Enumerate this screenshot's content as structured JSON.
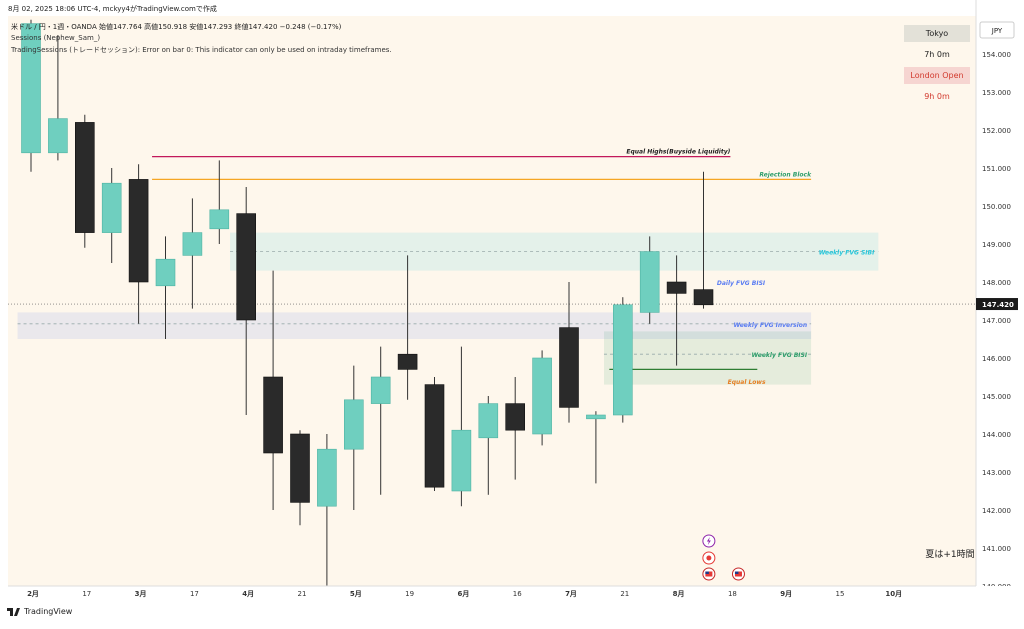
{
  "header": {
    "timestamp": "8月 02, 2025 18:06 UTC-4,  mckyy4がTradingView.comで作成",
    "symbol_line": "米ドル / 円・1週・OANDA  始値147.764  高値150.918  安値147.293  終値147.420  −0.248 (−0.17%)",
    "indicator_1": "Sessions (Nephew_Sam_)",
    "indicator_2": "TradingSessions (トレードセッション): Error on bar 0: This indicator can only be used on intraday timeframes."
  },
  "sessions": {
    "tokyo_label": "Tokyo",
    "tokyo_time": "7h 0m",
    "london_label": "London Open",
    "london_time": "9h 0m"
  },
  "currency": "JPY",
  "dst_note": "夏は+1時間",
  "footer": {
    "brand": "TradingView"
  },
  "colors": {
    "bull": "#6fcfbf",
    "bear": "#2a2a2a",
    "background": "#fef7ec",
    "equal_highs": "#c2185b",
    "rejection": "#f5a623",
    "weekly_fvg_sibi": "#26c6da",
    "weekly_fvg_inversion": "#5a7cf2",
    "weekly_fvg_bisi": "#2e9e6b",
    "equal_lows": "#e67e22"
  },
  "chart_data": {
    "type": "candlestick",
    "timeframe": "1週",
    "ylim": [
      140,
      155
    ],
    "current_price": 147.42,
    "current_price_label": "147.420",
    "y_ticks": [
      "154.000",
      "153.000",
      "152.000",
      "151.000",
      "150.000",
      "149.000",
      "148.000",
      "147.000",
      "146.000",
      "145.000",
      "144.000",
      "143.000",
      "142.000",
      "141.000",
      "140.000"
    ],
    "x_ticks": [
      {
        "label": "2月",
        "i": 0.5
      },
      {
        "label": "17",
        "i": 2.5
      },
      {
        "label": "3月",
        "i": 4.5
      },
      {
        "label": "17",
        "i": 6.5
      },
      {
        "label": "4月",
        "i": 8.5
      },
      {
        "label": "21",
        "i": 10.5
      },
      {
        "label": "5月",
        "i": 12.5
      },
      {
        "label": "19",
        "i": 14.5
      },
      {
        "label": "6月",
        "i": 16.5
      },
      {
        "label": "16",
        "i": 18.5
      },
      {
        "label": "7月",
        "i": 20.5
      },
      {
        "label": "21",
        "i": 22.5
      },
      {
        "label": "8月",
        "i": 24.5
      },
      {
        "label": "18",
        "i": 26.5
      },
      {
        "label": "9月",
        "i": 28.5
      },
      {
        "label": "15",
        "i": 30.5
      },
      {
        "label": "10月",
        "i": 32.5
      }
    ],
    "candles": [
      {
        "o": 151.4,
        "h": 154.9,
        "l": 150.9,
        "c": 154.8
      },
      {
        "o": 151.4,
        "h": 154.5,
        "l": 151.2,
        "c": 152.3
      },
      {
        "o": 152.2,
        "h": 152.4,
        "l": 148.9,
        "c": 149.3
      },
      {
        "o": 149.3,
        "h": 151.0,
        "l": 148.5,
        "c": 150.6
      },
      {
        "o": 150.7,
        "h": 151.1,
        "l": 146.9,
        "c": 148.0
      },
      {
        "o": 147.9,
        "h": 149.2,
        "l": 146.5,
        "c": 148.6
      },
      {
        "o": 148.7,
        "h": 150.2,
        "l": 147.3,
        "c": 149.3
      },
      {
        "o": 149.4,
        "h": 151.2,
        "l": 149.0,
        "c": 149.9
      },
      {
        "o": 149.8,
        "h": 150.5,
        "l": 144.5,
        "c": 147.0
      },
      {
        "o": 145.5,
        "h": 148.3,
        "l": 142.0,
        "c": 143.5
      },
      {
        "o": 144.0,
        "h": 144.1,
        "l": 141.6,
        "c": 142.2
      },
      {
        "o": 142.1,
        "h": 144.0,
        "l": 140.0,
        "c": 143.6
      },
      {
        "o": 143.6,
        "h": 145.8,
        "l": 142.0,
        "c": 144.9
      },
      {
        "o": 144.8,
        "h": 146.3,
        "l": 142.4,
        "c": 145.5
      },
      {
        "o": 146.1,
        "h": 148.7,
        "l": 144.9,
        "c": 145.7
      },
      {
        "o": 145.3,
        "h": 145.5,
        "l": 142.5,
        "c": 142.6
      },
      {
        "o": 142.5,
        "h": 146.3,
        "l": 142.1,
        "c": 144.1
      },
      {
        "o": 143.9,
        "h": 145.0,
        "l": 142.4,
        "c": 144.8
      },
      {
        "o": 144.8,
        "h": 145.5,
        "l": 142.8,
        "c": 144.1
      },
      {
        "o": 144.0,
        "h": 146.2,
        "l": 143.7,
        "c": 146.0
      },
      {
        "o": 146.8,
        "h": 148.0,
        "l": 144.3,
        "c": 144.7
      },
      {
        "o": 144.4,
        "h": 144.6,
        "l": 142.7,
        "c": 144.5
      },
      {
        "o": 144.5,
        "h": 147.6,
        "l": 144.3,
        "c": 147.4
      },
      {
        "o": 147.2,
        "h": 149.2,
        "l": 146.9,
        "c": 148.8
      },
      {
        "o": 148.0,
        "h": 148.7,
        "l": 145.8,
        "c": 147.7
      },
      {
        "o": 147.8,
        "h": 150.9,
        "l": 147.3,
        "c": 147.4
      }
    ],
    "zones": [
      {
        "label": "Weekly FVG SIBI",
        "from": 148.3,
        "to": 149.3,
        "i0": 7.4,
        "i1": 31.5,
        "color": "#26c6da",
        "mid": 148.8
      },
      {
        "label": "Weekly FVG Inversion",
        "from": 146.5,
        "to": 147.2,
        "i0": -0.5,
        "i1": 29.0,
        "color": "#5a7cf2",
        "mid": 146.9
      },
      {
        "label": "Weekly FVG BISI",
        "from": 145.3,
        "to": 146.7,
        "i0": 21.3,
        "i1": 29.0,
        "color": "#2e9e6b",
        "mid": 146.1
      }
    ],
    "levels": [
      {
        "label": "Equal Highs(Buyside Liquidity)",
        "price": 151.3,
        "i0": 4.5,
        "i1": 26.0,
        "color": "#c2185b"
      },
      {
        "label": "Rejection Block",
        "price": 150.7,
        "i0": 4.5,
        "i1": 29.0,
        "color": "#f5a623"
      },
      {
        "label": "Equal Lows",
        "price": 145.7,
        "i0": 21.5,
        "i1": 27.0,
        "color": "#2e7d32"
      }
    ],
    "annotations": [
      {
        "label": "Daily FVG BISI",
        "price": 148.0,
        "i": 25.2,
        "color": "#5a7cf2"
      },
      {
        "label": "Equal Lows",
        "price": 145.4,
        "i": 25.6,
        "color": "#e67e22"
      }
    ]
  }
}
